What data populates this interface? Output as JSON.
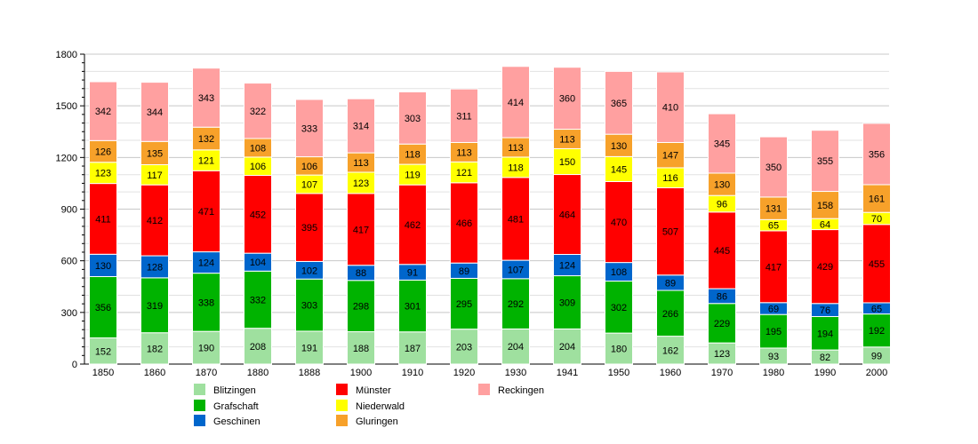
{
  "chart_data": {
    "type": "bar",
    "stacked": true,
    "title": "",
    "xlabel": "",
    "ylabel": "",
    "ylim": [
      0,
      1800
    ],
    "yticks": [
      0,
      300,
      600,
      900,
      1200,
      1500,
      1800
    ],
    "grid": true,
    "legend_position": "bottom",
    "categories": [
      "1850",
      "1860",
      "1870",
      "1880",
      "1888",
      "1900",
      "1910",
      "1920",
      "1930",
      "1941",
      "1950",
      "1960",
      "1970",
      "1980",
      "1990",
      "2000"
    ],
    "series": [
      {
        "name": "Blitzingen",
        "color": "#9fe09f",
        "values": [
          152,
          182,
          190,
          208,
          191,
          188,
          187,
          203,
          204,
          204,
          180,
          162,
          123,
          93,
          82,
          99
        ]
      },
      {
        "name": "Grafschaft",
        "color": "#00b300",
        "values": [
          356,
          319,
          338,
          332,
          303,
          298,
          301,
          295,
          292,
          309,
          302,
          266,
          229,
          195,
          194,
          192
        ]
      },
      {
        "name": "Geschinen",
        "color": "#0066cc",
        "values": [
          130,
          128,
          124,
          104,
          102,
          88,
          91,
          89,
          107,
          124,
          108,
          89,
          86,
          69,
          76,
          65
        ]
      },
      {
        "name": "Münster",
        "color": "#ff0000",
        "values": [
          411,
          412,
          471,
          452,
          395,
          417,
          462,
          466,
          481,
          464,
          470,
          507,
          445,
          417,
          429,
          455
        ]
      },
      {
        "name": "Niederwald",
        "color": "#ffff00",
        "values": [
          123,
          117,
          121,
          106,
          107,
          123,
          119,
          121,
          118,
          150,
          145,
          116,
          96,
          65,
          64,
          70
        ]
      },
      {
        "name": "Gluringen",
        "color": "#f7a12a",
        "values": [
          126,
          135,
          132,
          108,
          106,
          113,
          118,
          113,
          113,
          113,
          130,
          147,
          130,
          131,
          158,
          161
        ]
      },
      {
        "name": "Reckingen",
        "color": "#ffa0a0",
        "values": [
          342,
          344,
          343,
          322,
          333,
          314,
          303,
          311,
          414,
          360,
          365,
          410,
          345,
          350,
          355,
          356
        ]
      }
    ]
  }
}
